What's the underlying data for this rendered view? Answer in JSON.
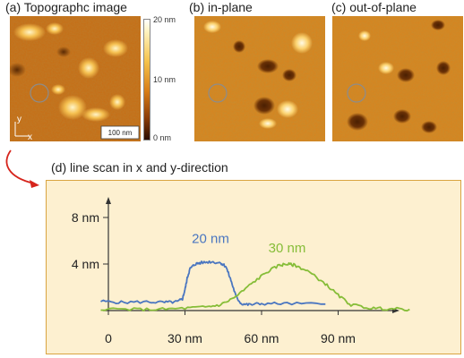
{
  "panels": {
    "a": {
      "title": "(a) Topographc image",
      "scale_bar": "100 nm",
      "colorbar": {
        "max_label": "20 nm",
        "mid_label": "10 nm",
        "min_label": "0 nm"
      },
      "axes": {
        "x": "x",
        "y": "y"
      }
    },
    "b": {
      "title": "(b) in-plane"
    },
    "c": {
      "title": "(c) out-of-plane"
    },
    "d": {
      "title": "(d) line scan in x and y-direction"
    }
  },
  "chart_data": {
    "type": "line",
    "title": "(d) line scan in x and y-direction",
    "xlabel": "",
    "ylabel": "",
    "x_ticks": [
      "0",
      "30 nm",
      "60 nm",
      "90 nm"
    ],
    "y_ticks": [
      "4 nm",
      "8 nm"
    ],
    "xlim": [
      -8,
      122
    ],
    "ylim": [
      0,
      9.5
    ],
    "series": [
      {
        "name": "20 nm",
        "color": "#4a76c0",
        "x": [
          -3,
          5,
          15,
          22,
          27,
          29,
          30,
          31,
          32,
          34,
          36,
          40,
          44,
          46,
          48,
          50,
          52,
          55,
          60,
          70,
          85
        ],
        "y": [
          0.8,
          0.7,
          0.75,
          0.7,
          0.75,
          1.0,
          1.8,
          2.9,
          3.6,
          4.0,
          4.1,
          4.2,
          4.1,
          3.8,
          2.6,
          1.2,
          0.6,
          0.5,
          0.6,
          0.6,
          0.55
        ]
      },
      {
        "name": "30 nm",
        "color": "#86bd38",
        "x": [
          -3,
          10,
          20,
          30,
          38,
          44,
          50,
          56,
          62,
          67,
          70,
          73,
          78,
          85,
          90,
          95,
          103,
          110,
          118
        ],
        "y": [
          0.15,
          0.1,
          0.1,
          0.2,
          0.3,
          0.5,
          1.2,
          2.3,
          3.3,
          3.9,
          4.0,
          3.9,
          3.4,
          2.3,
          1.3,
          0.5,
          0.2,
          0.15,
          0.1
        ]
      }
    ]
  }
}
